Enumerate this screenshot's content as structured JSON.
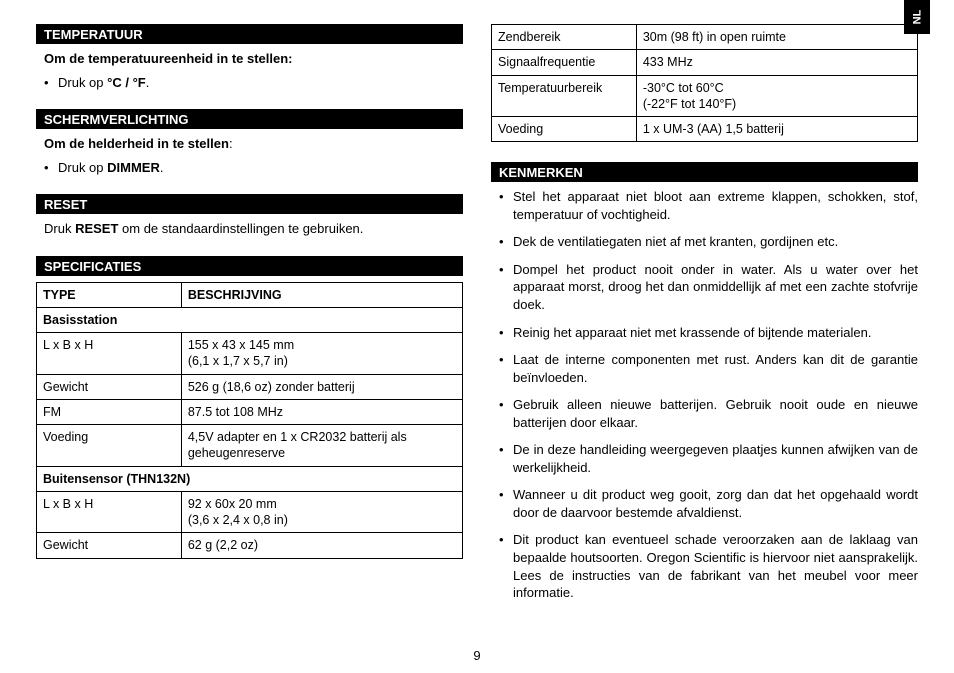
{
  "langTab": "NL",
  "pageNumber": "9",
  "left": {
    "temp": {
      "header": "TEMPERATUUR",
      "intro": "Om de temperatuureenheid in te stellen:",
      "bullet_pre": "Druk op ",
      "bullet_bold": "°C / °F",
      "bullet_post": "."
    },
    "backlight": {
      "header": "SCHERMVERLICHTING",
      "intro": "Om de helderheid in te stellen",
      "intro_colon": ":",
      "bullet_pre": "Druk op ",
      "bullet_bold": "DIMMER",
      "bullet_post": "."
    },
    "reset": {
      "header": "RESET",
      "text_pre": "Druk ",
      "text_bold": "RESET",
      "text_post": " om de standaardinstellingen te gebruiken."
    },
    "specs": {
      "header": "SPECIFICATIES",
      "th_type": "TYPE",
      "th_desc": "BESCHRIJVING",
      "main_sub": "Basisstation",
      "main_rows": [
        {
          "k": "L x B x H",
          "v": "155 x 43 x 145 mm\n(6,1 x 1,7 x 5,7 in)"
        },
        {
          "k": "Gewicht",
          "v": "526 g (18,6 oz) zonder batterij"
        },
        {
          "k": "FM",
          "v": "87.5 tot 108 MHz"
        },
        {
          "k": "Voeding",
          "v": "4,5V adapter en 1 x CR2032 batterij als geheugenreserve"
        }
      ],
      "sensor_sub": "Buitensensor (THN132N)",
      "sensor_rows": [
        {
          "k": "L x B x H",
          "v": "92 x 60x 20 mm\n(3,6 x 2,4 x 0,8 in)"
        },
        {
          "k": "Gewicht",
          "v": "62 g (2,2 oz)"
        }
      ]
    }
  },
  "right": {
    "ext_rows": [
      {
        "k": "Zendbereik",
        "v": "30m (98 ft) in open ruimte"
      },
      {
        "k": "Signaalfrequentie",
        "v": "433 MHz"
      },
      {
        "k": "Temperatuurbereik",
        "v": "-30°C tot 60°C\n(-22°F tot 140°F)"
      },
      {
        "k": "Voeding",
        "v": "1 x UM-3 (AA) 1,5 batterij"
      }
    ],
    "features": {
      "header": "KENMERKEN",
      "items": [
        "Stel het apparaat niet bloot aan extreme klappen, schokken, stof, temperatuur of vochtigheid.",
        "Dek de ventilatiegaten niet af met kranten, gordijnen etc.",
        "Dompel het product nooit onder in water. Als u water over het apparaat morst, droog het dan onmiddellijk af met een zachte stofvrije doek.",
        "Reinig het apparaat niet met krassende of bijtende materialen.",
        "Laat de interne componenten met rust. Anders kan dit de garantie beïnvloeden.",
        "Gebruik alleen nieuwe batterijen. Gebruik nooit oude en nieuwe batterijen door elkaar.",
        "De in deze handleiding weergegeven plaatjes kunnen afwijken van de werkelijkheid.",
        "Wanneer u dit product weg gooit, zorg dan dat het opgehaald wordt door de daarvoor bestemde afvaldienst.",
        "Dit product kan eventueel schade veroorzaken aan de laklaag van bepaalde houtsoorten. Oregon Scientific is hiervoor niet aansprakelijk. Lees de instructies van de fabrikant van het meubel voor meer informatie."
      ]
    }
  }
}
